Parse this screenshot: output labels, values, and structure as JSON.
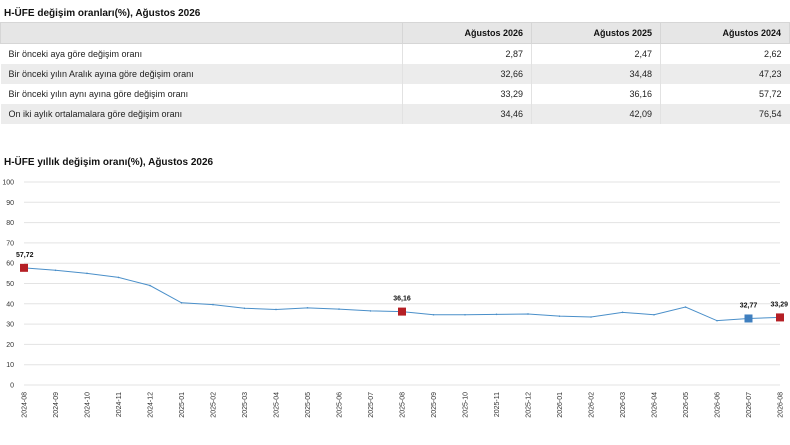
{
  "table": {
    "title": "H-ÜFE değişim oranları(%), Ağustos 2026",
    "headers": [
      "",
      "Ağustos 2026",
      "Ağustos 2025",
      "Ağustos 2024"
    ],
    "rows": [
      {
        "label": "Bir önceki aya göre değişim oranı",
        "values": [
          "2,87",
          "2,47",
          "2,62"
        ]
      },
      {
        "label": "Bir önceki yılın Aralık ayına göre değişim oranı",
        "values": [
          "32,66",
          "34,48",
          "47,23"
        ]
      },
      {
        "label": "Bir önceki yılın aynı ayına göre değişim oranı",
        "values": [
          "33,29",
          "36,16",
          "57,72"
        ]
      },
      {
        "label": "On iki aylık ortalamalara göre değişim oranı",
        "values": [
          "34,46",
          "42,09",
          "76,54"
        ]
      }
    ]
  },
  "chart_data": {
    "type": "line",
    "title": "H-ÜFE yıllık değişim oranı(%), Ağustos 2026",
    "xlabel": "",
    "ylabel": "",
    "ylim": [
      0,
      100
    ],
    "yticks": [
      0,
      10,
      20,
      30,
      40,
      50,
      60,
      70,
      80,
      90,
      100
    ],
    "grid": true,
    "line_color": "#4a8fc9",
    "categories": [
      "2024-08",
      "2024-09",
      "2024-10",
      "2024-11",
      "2024-12",
      "2025-01",
      "2025-02",
      "2025-03",
      "2025-04",
      "2025-05",
      "2025-06",
      "2025-07",
      "2025-08",
      "2025-09",
      "2025-10",
      "2025-11",
      "2025-12",
      "2026-01",
      "2026-02",
      "2026-03",
      "2026-04",
      "2026-05",
      "2026-06",
      "2026-07",
      "2026-08"
    ],
    "series": [
      {
        "values": [
          57.72,
          56.5,
          55.0,
          53.0,
          49.0,
          40.5,
          39.6,
          37.8,
          37.2,
          38.0,
          37.4,
          36.5,
          36.16,
          34.6,
          34.6,
          34.8,
          35.0,
          33.9,
          33.5,
          35.8,
          34.6,
          38.4,
          31.7,
          32.77,
          33.29
        ]
      }
    ],
    "highlights": [
      {
        "index": 0,
        "label": "57,72",
        "color": "#b51f25",
        "shape": "square"
      },
      {
        "index": 12,
        "label": "36,16",
        "color": "#b51f25",
        "shape": "square"
      },
      {
        "index": 23,
        "label": "32,77",
        "color": "#3f7fbf",
        "shape": "square"
      },
      {
        "index": 24,
        "label": "33,29",
        "color": "#b51f25",
        "shape": "square"
      }
    ]
  }
}
